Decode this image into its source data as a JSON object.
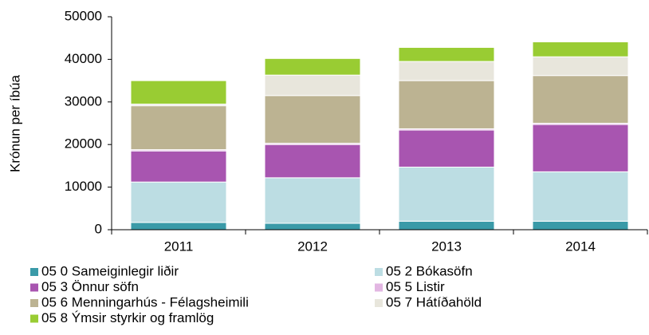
{
  "chart_data": {
    "type": "stacked_bar",
    "y_label": "Krónun per íbúa",
    "categories": [
      "2011",
      "2012",
      "2013",
      "2014"
    ],
    "series": [
      {
        "name": "05 0 Sameiginlegir liðir",
        "color": "#3a9aa8",
        "values": [
          1700,
          1500,
          2000,
          2000
        ]
      },
      {
        "name": "05 2 Bókasöfn",
        "color": "#bcdde3",
        "values": [
          9500,
          10700,
          12700,
          11600
        ]
      },
      {
        "name": "05 3 Önnur söfn",
        "color": "#a855b0",
        "values": [
          7300,
          7800,
          8700,
          11100
        ]
      },
      {
        "name": "05 5 Listir",
        "color": "#e2b6e2",
        "values": [
          300,
          300,
          300,
          300
        ]
      },
      {
        "name": "05 6 Menningarhús - Félagsheimili",
        "color": "#bcb392",
        "values": [
          10300,
          11200,
          11300,
          11200
        ]
      },
      {
        "name": "05 7 Hátíðahöld",
        "color": "#e8e6dc",
        "values": [
          400,
          4800,
          4500,
          4400
        ]
      },
      {
        "name": "05 8 Ýmsir styrkir og framlög",
        "color": "#99cc33",
        "values": [
          5500,
          3900,
          3300,
          3500
        ]
      }
    ],
    "ylim": [
      0,
      50000
    ],
    "yticks": [
      0,
      10000,
      20000,
      30000,
      40000,
      50000
    ],
    "legend": "bottom"
  }
}
